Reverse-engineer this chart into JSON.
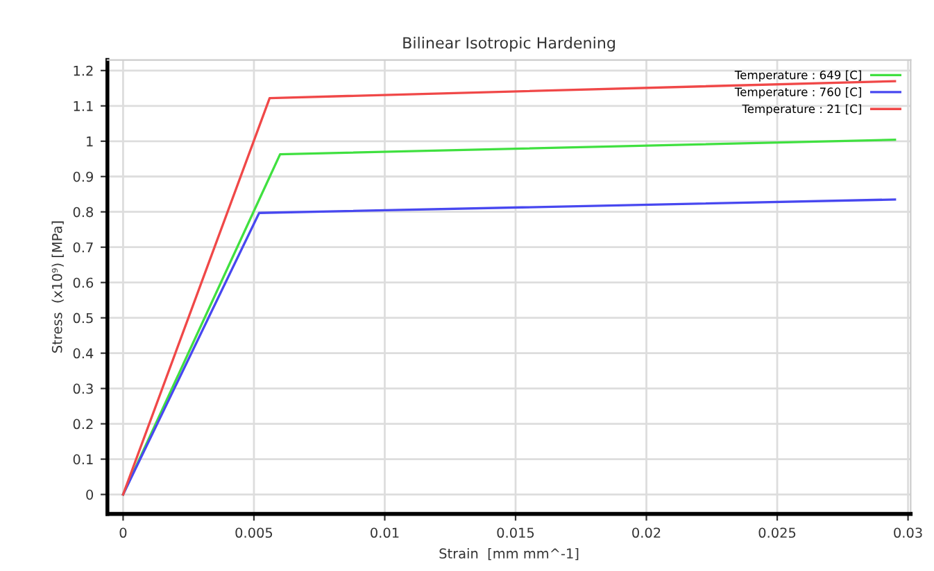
{
  "chart_data": {
    "type": "line",
    "title": "Bilinear Isotropic Hardening",
    "xlabel": "Strain  [mm mm^-1]",
    "ylabel": "Stress  (x10⁹) [MPa]",
    "series": [
      {
        "name": "Temperature : 649 [C]",
        "color": "#40e040",
        "x": [
          0,
          0.006,
          0.0295
        ],
        "values": [
          0,
          0.963,
          1.004
        ]
      },
      {
        "name": "Temperature : 760 [C]",
        "color": "#4848f0",
        "x": [
          0,
          0.0052,
          0.0295
        ],
        "values": [
          0,
          0.797,
          0.835
        ]
      },
      {
        "name": "Temperature : 21 [C]",
        "color": "#f04848",
        "x": [
          0,
          0.0056,
          0.0295
        ],
        "values": [
          0,
          1.122,
          1.17
        ]
      }
    ],
    "xlim": [
      -0.0006,
      0.0301
    ],
    "ylim": [
      -0.055,
      1.23
    ],
    "xticks": [
      0,
      0.005,
      0.01,
      0.015,
      0.02,
      0.025,
      0.03
    ],
    "yticks": [
      0,
      0.1,
      0.2,
      0.3,
      0.4,
      0.5,
      0.6,
      0.7,
      0.8,
      0.9,
      1,
      1.1,
      1.2
    ],
    "grid": true,
    "legend": "top right"
  }
}
